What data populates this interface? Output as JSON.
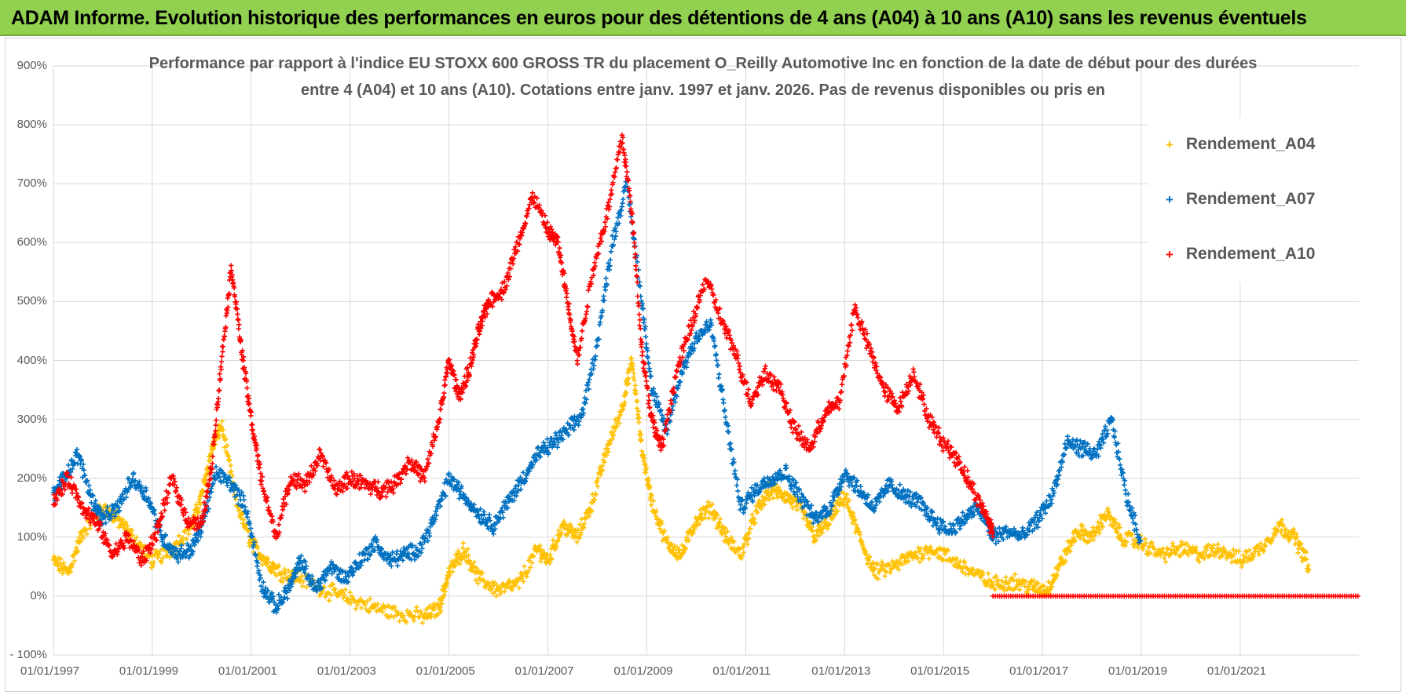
{
  "banner": {
    "title": "ADAM Informe. Evolution historique des performances en euros pour des détentions de 4 ans (A04) à 10 ans (A10) sans les revenus éventuels"
  },
  "colors": {
    "banner_bg": "#92d050",
    "A04": "#ffc000",
    "A07": "#0070c0",
    "A10": "#ff0000",
    "grid": "#d9d9d9",
    "text": "#595959"
  },
  "chart_data": {
    "type": "scatter",
    "title_line1": "Performance par rapport à l'indice EU STOXX 600 GROSS TR  du placement O_Reilly Automotive Inc en fonction de la date de début pour des durées",
    "title_line2": "entre 4 (A04) et 10 ans (A10). Cotations entre janv. 1997 et janv. 2026. Pas de revenus disponibles ou pris en",
    "marker": "+",
    "x_start_year": 1997,
    "x_end_year": 2023.4,
    "x_ticks": [
      "01/01/1997",
      "01/01/1999",
      "01/01/2001",
      "01/01/2003",
      "01/01/2005",
      "01/01/2007",
      "01/01/2009",
      "01/01/2011",
      "01/01/2013",
      "01/01/2015",
      "01/01/2017",
      "01/01/2019",
      "01/01/2021"
    ],
    "x_tick_years": [
      1997,
      1999,
      2001,
      2003,
      2005,
      2007,
      2009,
      2011,
      2013,
      2015,
      2017,
      2019,
      2021
    ],
    "y_ticks": [
      "900%",
      "800%",
      "700%",
      "600%",
      "500%",
      "400%",
      "300%",
      "200%",
      "100%",
      "0%",
      "- 100%"
    ],
    "y_tick_values": [
      900,
      800,
      700,
      600,
      500,
      400,
      300,
      200,
      100,
      0,
      -100
    ],
    "ylim": [
      -100,
      900
    ],
    "legend_position": "top-right",
    "series": [
      {
        "name": "Rendement_A04",
        "color": "#ffc000",
        "x": [
          1997.0,
          1997.3,
          1997.6,
          1998.0,
          1998.3,
          1998.6,
          1999.0,
          1999.4,
          1999.8,
          2000.0,
          2000.2,
          2000.4,
          2000.7,
          2001.0,
          2001.3,
          2001.6,
          2002.0,
          2002.5,
          2003.0,
          2003.5,
          2004.0,
          2004.5,
          2004.8,
          2005.0,
          2005.3,
          2005.6,
          2006.0,
          2006.4,
          2006.8,
          2007.0,
          2007.3,
          2007.6,
          2007.9,
          2008.2,
          2008.5,
          2008.7,
          2008.9,
          2009.1,
          2009.4,
          2009.7,
          2010.0,
          2010.3,
          2010.6,
          2010.9,
          2011.2,
          2011.5,
          2011.8,
          2012.1,
          2012.4,
          2012.7,
          2013.0,
          2013.3,
          2013.6,
          2014.0,
          2014.4,
          2014.8,
          2015.2,
          2015.6,
          2016.0,
          2016.4,
          2016.8,
          2017.1,
          2017.4,
          2017.7,
          2018.0,
          2018.3,
          2018.6,
          2019.0,
          2019.4,
          2019.8,
          2020.2,
          2020.6,
          2021.0,
          2021.4,
          2021.8,
          2022.1,
          2022.4
        ],
        "y": [
          60,
          40,
          110,
          150,
          130,
          100,
          60,
          80,
          120,
          170,
          250,
          290,
          160,
          90,
          60,
          40,
          30,
          10,
          -5,
          -20,
          -30,
          -35,
          -20,
          40,
          80,
          30,
          10,
          20,
          80,
          60,
          120,
          100,
          160,
          250,
          320,
          400,
          250,
          160,
          90,
          70,
          130,
          150,
          100,
          70,
          140,
          180,
          170,
          150,
          100,
          130,
          170,
          100,
          40,
          50,
          70,
          80,
          60,
          40,
          20,
          25,
          15,
          10,
          60,
          110,
          100,
          140,
          100,
          90,
          70,
          80,
          70,
          80,
          60,
          80,
          120,
          100,
          50
        ]
      },
      {
        "name": "Rendement_A07",
        "color": "#0070c0",
        "x": [
          1997.0,
          1997.2,
          1997.5,
          1997.8,
          1998.0,
          1998.3,
          1998.6,
          1998.9,
          1999.2,
          1999.5,
          1999.8,
          2000.0,
          2000.3,
          2000.6,
          2000.9,
          2001.2,
          2001.5,
          2001.8,
          2002.0,
          2002.3,
          2002.6,
          2002.9,
          2003.2,
          2003.5,
          2003.8,
          2004.1,
          2004.4,
          2004.7,
          2005.0,
          2005.3,
          2005.6,
          2005.9,
          2006.2,
          2006.5,
          2006.8,
          2007.1,
          2007.4,
          2007.7,
          2008.0,
          2008.3,
          2008.6,
          2008.9,
          2009.1,
          2009.4,
          2009.7,
          2010.0,
          2010.3,
          2010.6,
          2010.9,
          2011.2,
          2011.5,
          2011.8,
          2012.1,
          2012.4,
          2012.7,
          2013.0,
          2013.3,
          2013.6,
          2013.9,
          2014.2,
          2014.5,
          2014.8,
          2015.1,
          2015.4,
          2015.7,
          2016.0,
          2016.3,
          2016.6,
          2016.9,
          2017.2,
          2017.5,
          2017.8,
          2018.1,
          2018.4,
          2018.7,
          2019.0
        ],
        "y": [
          170,
          200,
          240,
          160,
          130,
          150,
          200,
          170,
          100,
          70,
          80,
          120,
          210,
          190,
          150,
          20,
          -20,
          20,
          60,
          10,
          50,
          30,
          60,
          90,
          60,
          70,
          80,
          130,
          200,
          170,
          140,
          120,
          160,
          200,
          240,
          260,
          280,
          310,
          430,
          600,
          700,
          500,
          350,
          280,
          380,
          440,
          460,
          300,
          150,
          180,
          200,
          210,
          170,
          130,
          150,
          210,
          180,
          150,
          190,
          170,
          160,
          130,
          110,
          130,
          150,
          100,
          110,
          100,
          130,
          170,
          260,
          250,
          240,
          300,
          170,
          90
        ]
      },
      {
        "name": "Rendement_A10",
        "color": "#ff0000",
        "x": [
          1997.0,
          1997.3,
          1997.6,
          1997.9,
          1998.2,
          1998.5,
          1998.8,
          1999.1,
          1999.4,
          1999.7,
          2000.0,
          2000.2,
          2000.4,
          2000.6,
          2000.8,
          2001.0,
          2001.2,
          2001.5,
          2001.8,
          2002.1,
          2002.4,
          2002.7,
          2003.0,
          2003.3,
          2003.6,
          2003.9,
          2004.2,
          2004.5,
          2004.8,
          2005.0,
          2005.2,
          2005.4,
          2005.6,
          2005.8,
          2006.1,
          2006.4,
          2006.7,
          2007.0,
          2007.2,
          2007.4,
          2007.6,
          2007.9,
          2008.2,
          2008.5,
          2008.7,
          2008.9,
          2009.1,
          2009.3,
          2009.6,
          2009.9,
          2010.2,
          2010.5,
          2010.8,
          2011.1,
          2011.4,
          2011.7,
          2012.0,
          2012.3,
          2012.6,
          2012.9,
          2013.2,
          2013.5,
          2013.8,
          2014.1,
          2014.4,
          2014.7,
          2015.0,
          2015.3,
          2015.6,
          2015.9,
          2016.0
        ],
        "y": [
          160,
          200,
          150,
          120,
          70,
          100,
          60,
          110,
          200,
          130,
          120,
          220,
          400,
          560,
          420,
          300,
          200,
          100,
          200,
          190,
          240,
          180,
          200,
          190,
          180,
          190,
          230,
          200,
          300,
          400,
          340,
          380,
          450,
          500,
          520,
          600,
          680,
          620,
          600,
          500,
          400,
          550,
          650,
          780,
          650,
          420,
          300,
          250,
          380,
          460,
          540,
          470,
          410,
          330,
          380,
          350,
          280,
          250,
          310,
          330,
          490,
          420,
          350,
          320,
          380,
          300,
          260,
          230,
          180,
          130,
          110
        ]
      }
    ],
    "flat_segment_A10": {
      "x_from": 2016.0,
      "x_to": 2023.4,
      "y": 0
    }
  }
}
